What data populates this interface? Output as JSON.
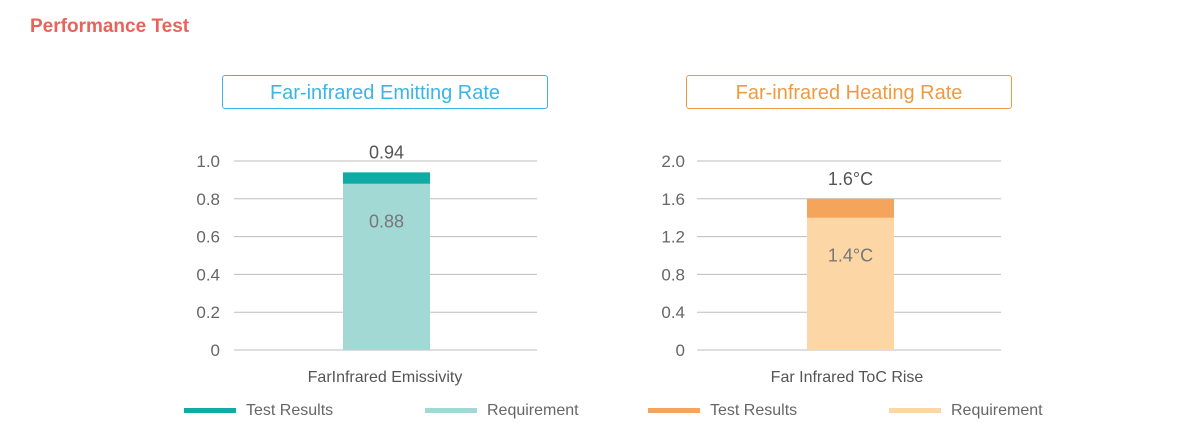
{
  "page": {
    "title": "Performance Test"
  },
  "chart_data": [
    {
      "type": "bar",
      "title": "Far-infrared Emitting  Rate",
      "categories": [
        "FarInfrared Emissivity"
      ],
      "xlabel": "",
      "ylabel": "",
      "ylim": [
        0,
        1.0
      ],
      "yticks": [
        0,
        0.2,
        0.4,
        0.6,
        0.8,
        1.0
      ],
      "ytick_labels": [
        "0",
        "0.2",
        "0.4",
        "0.6",
        "0.8",
        "1.0"
      ],
      "grid": true,
      "legend_position": "bottom",
      "series": [
        {
          "name": "Test Results",
          "values": [
            0.94
          ],
          "color": "#10aba4",
          "label": "0.94"
        },
        {
          "name": "Requirement",
          "values": [
            0.88
          ],
          "color": "#a3d9d4",
          "label": "0.88"
        }
      ]
    },
    {
      "type": "bar",
      "title": "Far-infrared Heating  Rate",
      "categories": [
        "Far Infrared ToC Rise"
      ],
      "xlabel": "",
      "ylabel": "",
      "ylim": [
        0,
        2.0
      ],
      "yticks": [
        0,
        0.4,
        0.8,
        1.2,
        1.6,
        2.0
      ],
      "ytick_labels": [
        "0",
        "0.4",
        "0.8",
        "1.2",
        "1.6",
        "2.0"
      ],
      "grid": true,
      "legend_position": "bottom",
      "series": [
        {
          "name": "Test Results",
          "values": [
            1.6
          ],
          "color": "#f5a45b",
          "label": "1.6°C"
        },
        {
          "name": "Requirement",
          "values": [
            1.4
          ],
          "color": "#fdd6a6",
          "label": "1.4°C"
        }
      ]
    }
  ]
}
